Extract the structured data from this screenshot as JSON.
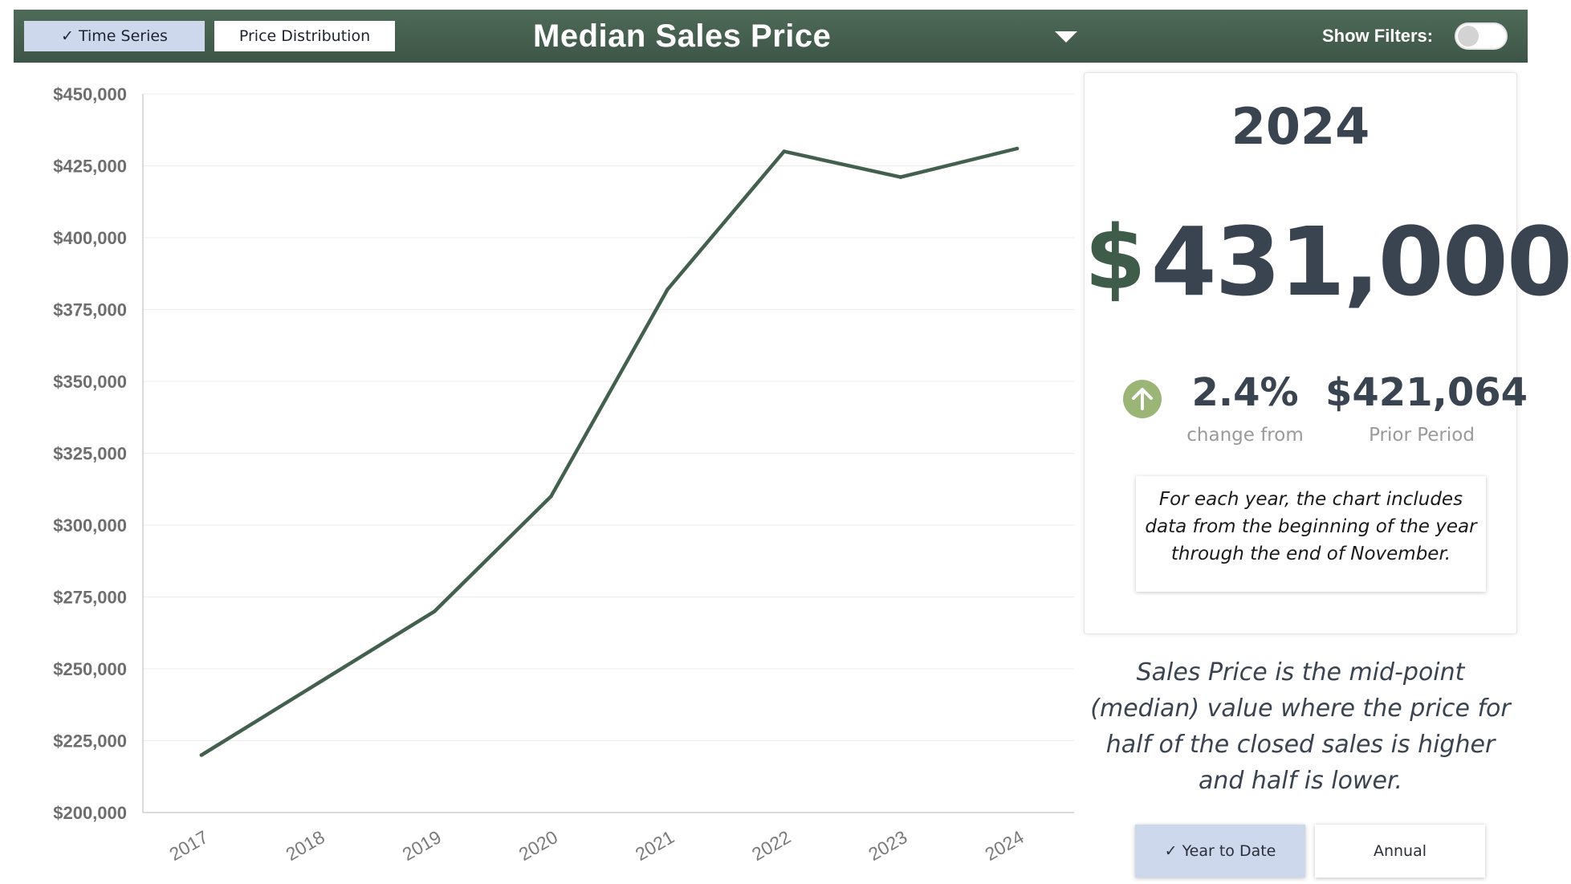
{
  "header": {
    "tabs": [
      {
        "label": "Time Series",
        "active": true
      },
      {
        "label": "Price Distribution",
        "active": false
      }
    ],
    "title": "Median Sales Price",
    "filters_label": "Show Filters:",
    "filters_on": false,
    "bar_color": "#4a6453"
  },
  "kpi": {
    "year": "2024",
    "currency_symbol": "$",
    "value": "431,000",
    "change_pct": "2.4%",
    "change_label": "change from",
    "prior_value": "$421,064",
    "prior_label": "Prior Period",
    "trend": "up",
    "accent_color": "#9bb577",
    "note": "For each year, the chart includes data from the beginning of the year through the end of November."
  },
  "definition": "Sales Price is the mid-point (median) value where the price for half of the closed sales is higher and half is lower.",
  "period_buttons": [
    {
      "label": "Year to Date",
      "active": true
    },
    {
      "label": "Annual",
      "active": false
    }
  ],
  "chart_data": {
    "type": "line",
    "x": [
      "2017",
      "2018",
      "2019",
      "2020",
      "2021",
      "2022",
      "2023",
      "2024"
    ],
    "series": [
      {
        "values": [
          220000,
          245000,
          270000,
          310000,
          382000,
          430000,
          421064,
          431000
        ]
      }
    ],
    "ylim": [
      200000,
      450000
    ],
    "yticks": [
      200000,
      225000,
      250000,
      275000,
      300000,
      325000,
      350000,
      375000,
      400000,
      425000,
      450000
    ],
    "ytick_labels": [
      "$200,000",
      "$225,000",
      "$250,000",
      "$275,000",
      "$300,000",
      "$325,000",
      "$350,000",
      "$375,000",
      "$400,000",
      "$425,000",
      "$450,000"
    ],
    "grid": true,
    "line_color": "#435f4d",
    "title": "",
    "xlabel": "",
    "ylabel": ""
  }
}
